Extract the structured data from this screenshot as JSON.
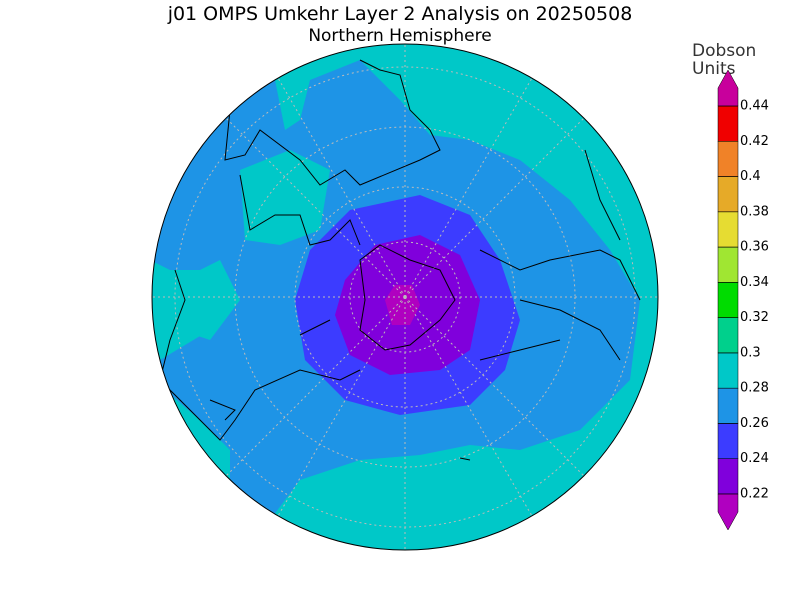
{
  "header": {
    "title": "j01 OMPS Umkehr Layer 2 Analysis on 20250508",
    "subtitle": "Northern Hemisphere"
  },
  "colorbar": {
    "units": [
      "Dobson",
      "Units"
    ],
    "ticks": [
      0.22,
      0.24,
      0.26,
      0.28,
      0.3,
      0.32,
      0.34,
      0.36,
      0.38,
      0.4,
      0.42,
      0.44
    ],
    "below_color": "#b000c0",
    "colors": [
      "#8000dc",
      "#3c3cff",
      "#1e94e6",
      "#00c8c8",
      "#00d08c",
      "#00dc00",
      "#a0e632",
      "#e6dc32",
      "#e6aa28",
      "#f08228",
      "#f00000"
    ],
    "above_color": "#c8009c"
  }
}
